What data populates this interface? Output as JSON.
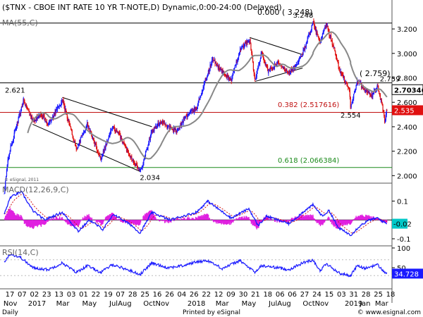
{
  "header": {
    "title": "($TNX - CBOE INT RATE 10 YR T-NOTE,D) Dynamic,0:00-24:00 (Delayed)"
  },
  "footer": {
    "left": "Daily",
    "center": "Printed by eSignal",
    "right": "© www.esignal.com",
    "watermark": "© eSignal, 2011"
  },
  "colors": {
    "up_candle": "#1a1aff",
    "down_candle": "#e01010",
    "ma_line": "#888888",
    "macd_line": "#1a1aff",
    "signal_line": "#d01010",
    "histogram": "#e020e0",
    "rsi_line": "#1a1aff",
    "fib_red": "#c01010",
    "fib_green": "#1a8a1a",
    "price_badge": "#e01010",
    "current_price_badge": "#000000"
  },
  "chart_data": [
    {
      "type": "candlestick",
      "panel": "price",
      "title": "($TNX - CBOE INT RATE 10 YR T-NOTE,D) Dynamic,0:00-24:00 (Delayed)",
      "indicator_label": "MA(55,C)",
      "ylim": [
        1.95,
        3.31
      ],
      "yticks": [
        2.0,
        2.2,
        2.4,
        2.6,
        2.8,
        3.0,
        3.2
      ],
      "ytick_labels": [
        "2.000",
        "2.200",
        "2.400",
        "2.600",
        "2.800",
        "3.000",
        "3.200"
      ],
      "x_date_range": [
        "2016-11-01",
        "2019-03-29"
      ],
      "price_path": [
        [
          "2016-11-01",
          1.85
        ],
        [
          "2016-11-10",
          2.15
        ],
        [
          "2016-11-25",
          2.35
        ],
        [
          "2016-12-15",
          2.62
        ],
        [
          "2017-01-05",
          2.45
        ],
        [
          "2017-01-25",
          2.5
        ],
        [
          "2017-02-10",
          2.42
        ],
        [
          "2017-03-14",
          2.62
        ],
        [
          "2017-04-15",
          2.22
        ],
        [
          "2017-05-10",
          2.42
        ],
        [
          "2017-06-10",
          2.14
        ],
        [
          "2017-07-07",
          2.4
        ],
        [
          "2017-07-25",
          2.32
        ],
        [
          "2017-08-10",
          2.2
        ],
        [
          "2017-09-08",
          2.034
        ],
        [
          "2017-10-05",
          2.36
        ],
        [
          "2017-10-27",
          2.45
        ],
        [
          "2017-11-10",
          2.4
        ],
        [
          "2017-12-01",
          2.36
        ],
        [
          "2017-12-20",
          2.48
        ],
        [
          "2018-01-15",
          2.55
        ],
        [
          "2018-01-31",
          2.73
        ],
        [
          "2018-02-21",
          2.95
        ],
        [
          "2018-03-15",
          2.85
        ],
        [
          "2018-04-05",
          2.78
        ],
        [
          "2018-04-25",
          3.03
        ],
        [
          "2018-05-17",
          3.11
        ],
        [
          "2018-05-29",
          2.78
        ],
        [
          "2018-06-13",
          3.0
        ],
        [
          "2018-06-29",
          2.85
        ],
        [
          "2018-07-20",
          2.92
        ],
        [
          "2018-08-15",
          2.85
        ],
        [
          "2018-08-29",
          2.88
        ],
        [
          "2018-09-15",
          3.0
        ],
        [
          "2018-10-09",
          3.248
        ],
        [
          "2018-10-25",
          3.08
        ],
        [
          "2018-11-08",
          3.24
        ],
        [
          "2018-11-25",
          3.05
        ],
        [
          "2018-12-10",
          2.85
        ],
        [
          "2018-12-31",
          2.7
        ],
        [
          "2019-01-03",
          2.554
        ],
        [
          "2019-01-18",
          2.78
        ],
        [
          "2019-02-05",
          2.7
        ],
        [
          "2019-02-20",
          2.65
        ],
        [
          "2019-03-05",
          2.73
        ],
        [
          "2019-03-15",
          2.6
        ],
        [
          "2019-03-22",
          2.44
        ],
        [
          "2019-03-27",
          2.535
        ]
      ],
      "horizontal_levels": [
        {
          "value": 3.248,
          "label": "3.248",
          "color": "#000000"
        },
        {
          "value": 2.759,
          "label": "2.759",
          "color": "#000000"
        },
        {
          "value": 2.517616,
          "label": "0.382 (2.517616)",
          "color": "#c01010"
        },
        {
          "value": 2.066384,
          "label": "0.618 (2.066384)",
          "color": "#1a8a1a"
        }
      ],
      "top_annotation": "0.000 ( 3.248)",
      "mid_annotation": "( 2.759)",
      "price_annotations": [
        {
          "date": "2016-12-15",
          "value": 2.621,
          "label": "2.621"
        },
        {
          "date": "2017-09-08",
          "value": 2.034,
          "label": "2.034"
        },
        {
          "date": "2018-10-09",
          "value": 3.248,
          "label": "3.248"
        },
        {
          "date": "2019-01-03",
          "value": 2.554,
          "label": "2.554"
        },
        {
          "date": "2019-03-05",
          "value": 2.759,
          "label": "2.759"
        }
      ],
      "trendlines": [
        {
          "from": [
            "2017-03-14",
            2.64
          ],
          "to": [
            "2017-10-05",
            2.4
          ]
        },
        {
          "from": [
            "2017-01-05",
            2.42
          ],
          "to": [
            "2017-09-08",
            2.034
          ]
        },
        {
          "from": [
            "2018-05-17",
            3.13
          ],
          "to": [
            "2018-09-15",
            2.99
          ]
        },
        {
          "from": [
            "2018-05-29",
            2.77
          ],
          "to": [
            "2018-09-15",
            2.88
          ]
        }
      ],
      "badges": [
        {
          "value": 2.703461,
          "label": "2.703461",
          "style": "current"
        },
        {
          "value": 2.535,
          "label": "2.535",
          "style": "last"
        }
      ]
    },
    {
      "type": "line",
      "panel": "macd",
      "label": "MACD(12,26,9,C)",
      "ylim": [
        -0.13,
        0.18
      ],
      "yticks": [
        0.1,
        -0.1
      ],
      "ytick_labels": [
        "0.1",
        "-0.1"
      ],
      "zero_line": 0,
      "last_value_label": "-0.02",
      "macd_path": [
        [
          "2016-11-01",
          0.03
        ],
        [
          "2016-11-15",
          0.12
        ],
        [
          "2016-12-10",
          0.15
        ],
        [
          "2017-01-05",
          0.05
        ],
        [
          "2017-02-01",
          0.0
        ],
        [
          "2017-03-14",
          0.04
        ],
        [
          "2017-04-20",
          -0.06
        ],
        [
          "2017-05-15",
          0.0
        ],
        [
          "2017-06-15",
          -0.05
        ],
        [
          "2017-07-10",
          0.03
        ],
        [
          "2017-08-20",
          -0.03
        ],
        [
          "2017-09-08",
          -0.07
        ],
        [
          "2017-10-05",
          0.04
        ],
        [
          "2017-11-15",
          0.0
        ],
        [
          "2017-12-15",
          0.02
        ],
        [
          "2018-01-15",
          0.04
        ],
        [
          "2018-02-10",
          0.1
        ],
        [
          "2018-03-05",
          0.06
        ],
        [
          "2018-04-05",
          0.01
        ],
        [
          "2018-05-15",
          0.06
        ],
        [
          "2018-06-05",
          -0.03
        ],
        [
          "2018-06-25",
          0.02
        ],
        [
          "2018-07-20",
          0.0
        ],
        [
          "2018-08-15",
          -0.02
        ],
        [
          "2018-09-15",
          0.04
        ],
        [
          "2018-10-09",
          0.08
        ],
        [
          "2018-10-30",
          0.02
        ],
        [
          "2018-11-15",
          0.05
        ],
        [
          "2018-12-05",
          -0.04
        ],
        [
          "2019-01-03",
          -0.08
        ],
        [
          "2019-01-25",
          -0.03
        ],
        [
          "2019-02-15",
          0.0
        ],
        [
          "2019-03-05",
          0.01
        ],
        [
          "2019-03-27",
          -0.02
        ]
      ]
    },
    {
      "type": "line",
      "panel": "rsi",
      "label": "RSI(14,C)",
      "ylim": [
        0,
        100
      ],
      "yticks": [
        100,
        50
      ],
      "ytick_labels": [
        "100",
        "50"
      ],
      "reference_levels": [
        70,
        30
      ],
      "last_value_label": "34.728",
      "rsi_path": [
        [
          "2016-11-01",
          65
        ],
        [
          "2016-11-15",
          85
        ],
        [
          "2016-12-10",
          75
        ],
        [
          "2017-01-05",
          50
        ],
        [
          "2017-02-10",
          45
        ],
        [
          "2017-03-14",
          62
        ],
        [
          "2017-04-15",
          38
        ],
        [
          "2017-05-10",
          55
        ],
        [
          "2017-06-10",
          38
        ],
        [
          "2017-07-07",
          58
        ],
        [
          "2017-08-10",
          45
        ],
        [
          "2017-09-08",
          33
        ],
        [
          "2017-10-05",
          62
        ],
        [
          "2017-11-10",
          50
        ],
        [
          "2017-12-15",
          55
        ],
        [
          "2018-01-15",
          65
        ],
        [
          "2018-02-10",
          68
        ],
        [
          "2018-03-15",
          48
        ],
        [
          "2018-04-25",
          68
        ],
        [
          "2018-05-29",
          38
        ],
        [
          "2018-06-13",
          55
        ],
        [
          "2018-07-20",
          50
        ],
        [
          "2018-08-15",
          45
        ],
        [
          "2018-09-15",
          62
        ],
        [
          "2018-10-09",
          70
        ],
        [
          "2018-10-25",
          42
        ],
        [
          "2018-11-08",
          60
        ],
        [
          "2018-12-10",
          35
        ],
        [
          "2019-01-03",
          30
        ],
        [
          "2019-01-18",
          55
        ],
        [
          "2019-02-05",
          48
        ],
        [
          "2019-03-05",
          58
        ],
        [
          "2019-03-22",
          38
        ],
        [
          "2019-03-27",
          35
        ]
      ]
    }
  ],
  "x_axis": {
    "day_labels": [
      "17",
      "07",
      "02",
      "23",
      "13",
      "03",
      "01",
      "22",
      "19",
      "07",
      "28",
      "25",
      "16",
      "26",
      "04",
      "26",
      "22",
      "12",
      "09",
      "30",
      "21",
      "18",
      "06",
      "06",
      "27",
      "24",
      "15",
      "03",
      "31",
      "28",
      "25",
      "18"
    ],
    "month_labels": [
      {
        "date": "2016-11-15",
        "label": "Nov"
      },
      {
        "date": "2017-01-15",
        "label": "2017"
      },
      {
        "date": "2017-03-15",
        "label": "Mar"
      },
      {
        "date": "2017-05-15",
        "label": "May"
      },
      {
        "date": "2017-07-25",
        "label": "JulAug"
      },
      {
        "date": "2017-10-15",
        "label": "OctNov"
      },
      {
        "date": "2018-01-15",
        "label": "2018"
      },
      {
        "date": "2018-03-15",
        "label": "Mar"
      },
      {
        "date": "2018-05-15",
        "label": "May"
      },
      {
        "date": "2018-07-25",
        "label": "JulAug"
      },
      {
        "date": "2018-10-15",
        "label": "OctNov"
      },
      {
        "date": "2019-01-10",
        "label": "2019"
      },
      {
        "date": "2019-02-05",
        "label": "Jan"
      },
      {
        "date": "2019-03-15",
        "label": "Mar"
      }
    ]
  }
}
